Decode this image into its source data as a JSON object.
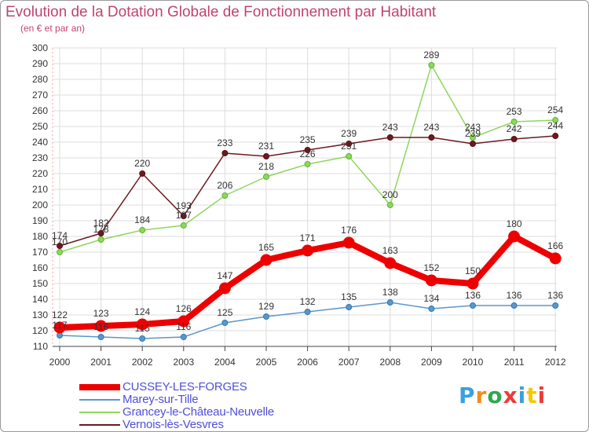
{
  "header": {
    "title": "Evolution de la Dotation Globale de Fonctionnement par Habitant",
    "subtitle": "(en € et par an)"
  },
  "logo": {
    "text": "Proxiti"
  },
  "colors": {
    "CUSSEY-LES-FORGES": "#ee0000",
    "Marey-sur-Tille": "#5b97c8",
    "Grancey-le-Château-Neuvelle": "#8ed65d",
    "Vernois-lès-Vesvres": "#6b1a1f"
  },
  "chart_data": {
    "type": "line",
    "title": "Evolution de la Dotation Globale de Fonctionnement par Habitant",
    "subtitle": "(en € et par an)",
    "xlabel": "",
    "ylabel": "",
    "x": [
      "2000",
      "2001",
      "2002",
      "2003",
      "2004",
      "2005",
      "2006",
      "2007",
      "2008",
      "2009",
      "2010",
      "2011",
      "2012"
    ],
    "ylim": [
      110,
      300
    ],
    "yticks": [
      110,
      120,
      130,
      140,
      150,
      160,
      170,
      180,
      190,
      200,
      210,
      220,
      230,
      240,
      250,
      260,
      270,
      280,
      290,
      300
    ],
    "grid": true,
    "legend_position": "bottom-left",
    "series": [
      {
        "name": "CUSSEY-LES-FORGES",
        "values": [
          122,
          123,
          124,
          126,
          147,
          165,
          171,
          176,
          163,
          152,
          150,
          180,
          166
        ]
      },
      {
        "name": "Marey-sur-Tille",
        "values": [
          117,
          116,
          115,
          116,
          125,
          129,
          132,
          135,
          138,
          134,
          136,
          136,
          136
        ]
      },
      {
        "name": "Grancey-le-Château-Neuvelle",
        "values": [
          170,
          178,
          184,
          187,
          206,
          218,
          226,
          231,
          200,
          289,
          243,
          253,
          254
        ]
      },
      {
        "name": "Vernois-lès-Vesvres",
        "values": [
          174,
          182,
          220,
          193,
          233,
          231,
          235,
          239,
          243,
          243,
          239,
          242,
          244
        ]
      }
    ]
  }
}
